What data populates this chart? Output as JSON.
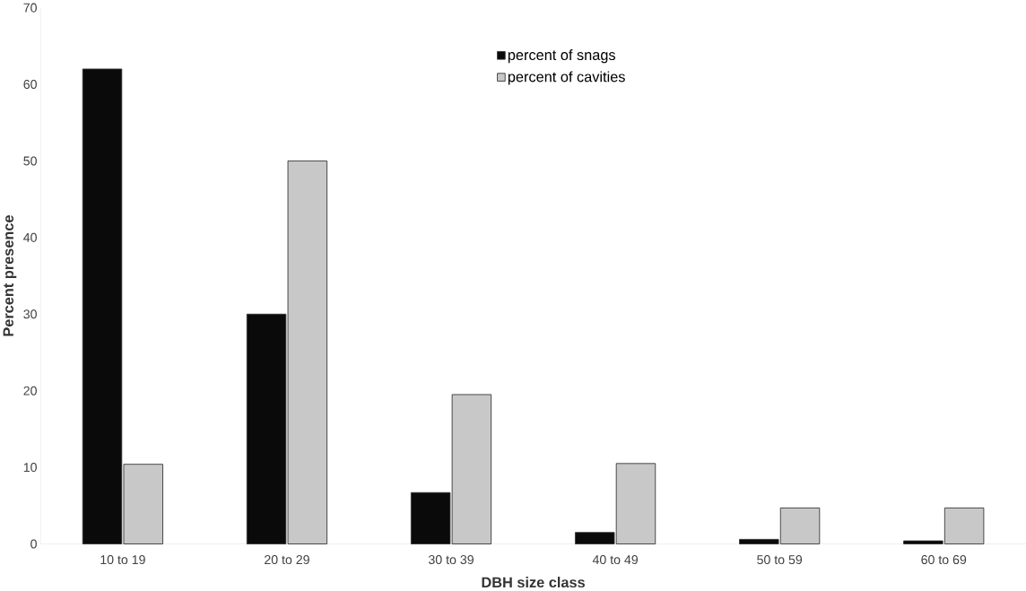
{
  "chart_data": {
    "type": "bar",
    "xlabel": "DBH size class",
    "ylabel": "Percent presence",
    "categories": [
      "10 to 19",
      "20 to 29",
      "30 to 39",
      "40 to 49",
      "50 to 59",
      "60 to 69"
    ],
    "series": [
      {
        "name": "percent of snags",
        "color": "#0a0a0a",
        "values": [
          62,
          30,
          6.7,
          1.5,
          0.6,
          0.4
        ]
      },
      {
        "name": "percent of cavities",
        "color": "#c8c8c8",
        "values": [
          10.4,
          50,
          19.5,
          10.5,
          4.7,
          4.7
        ]
      }
    ],
    "ylim": [
      0,
      70
    ],
    "yticks": [
      0,
      10,
      20,
      30,
      40,
      50,
      60,
      70
    ],
    "grid": false,
    "legend": "top"
  }
}
